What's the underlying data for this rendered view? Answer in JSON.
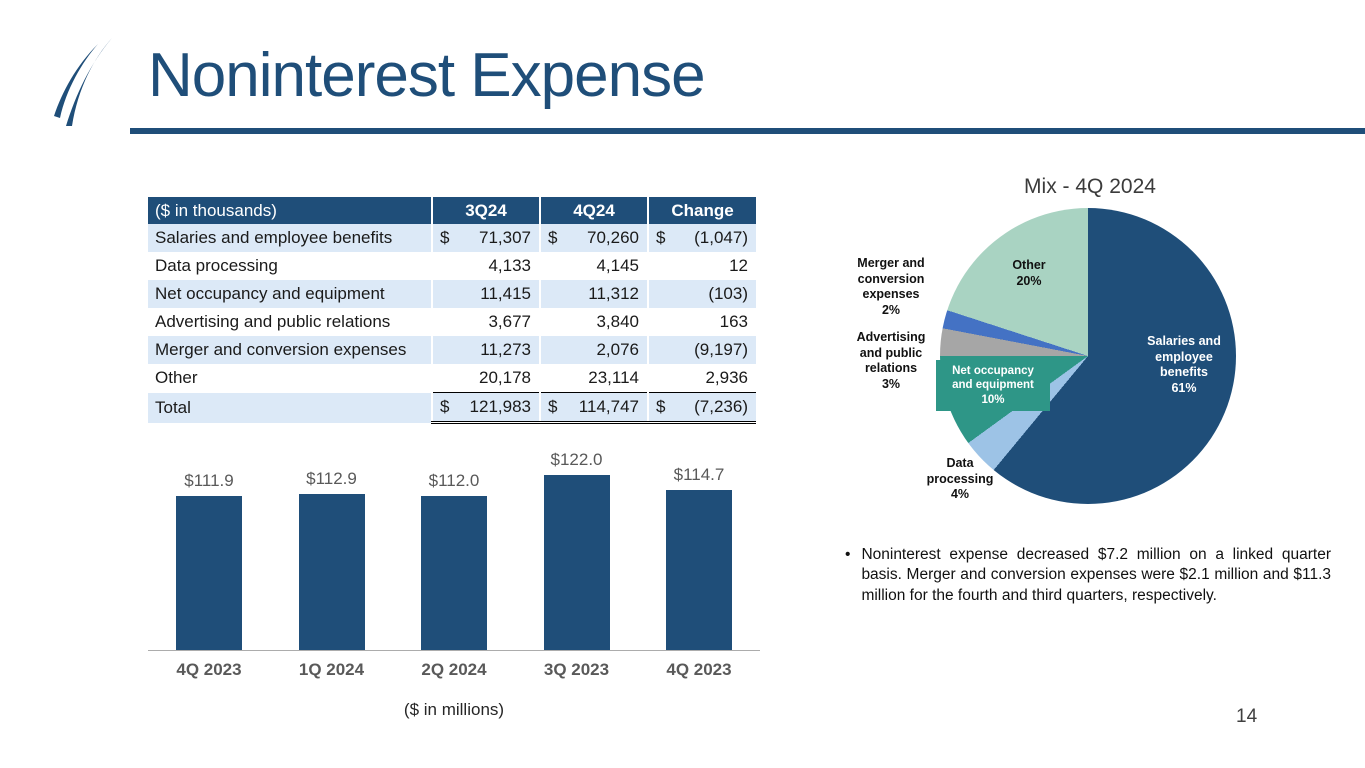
{
  "slide": {
    "title": "Noninterest Expense",
    "page_number": "14",
    "bullet": "Noninterest expense decreased $7.2 million on a linked quarter basis. Merger and conversion expenses were $2.1 million and $11.3 million for the fourth and third quarters, respectively.",
    "bullet_marker": "•"
  },
  "colors": {
    "navy": "#1F4E79",
    "table_row_alt": "#DCE9F7",
    "mint": "#A9D3C2",
    "teal": "#2E9687",
    "light_blue": "#9DC3E6",
    "gray": "#A6A6A6",
    "blue": "#4472C4",
    "axis_label_gray": "#595959"
  },
  "table": {
    "unit_label": "($ in thousands)",
    "columns": [
      "3Q24",
      "4Q24",
      "Change"
    ],
    "rows": [
      {
        "label": "Salaries and employee benefits",
        "d1": "$",
        "v1": "71,307",
        "d2": "$",
        "v2": "70,260",
        "d3": "$",
        "v3": "(1,047)"
      },
      {
        "label": "Data processing",
        "v1": "4,133",
        "v2": "4,145",
        "v3": "12"
      },
      {
        "label": "Net occupancy and equipment",
        "v1": "11,415",
        "v2": "11,312",
        "v3": "(103)"
      },
      {
        "label": "Advertising and public relations",
        "v1": "3,677",
        "v2": "3,840",
        "v3": "163"
      },
      {
        "label": "Merger and conversion expenses",
        "v1": "11,273",
        "v2": "2,076",
        "v3": "(9,197)"
      },
      {
        "label": "Other",
        "v1": "20,178",
        "v2": "23,114",
        "v3": "2,936"
      }
    ],
    "total": {
      "label": "Total",
      "d1": "$",
      "v1": "121,983",
      "d2": "$",
      "v2": "114,747",
      "d3": "$",
      "v3": "(7,236)"
    }
  },
  "chart_data": [
    {
      "type": "bar",
      "title": "",
      "categories": [
        "4Q 2023",
        "1Q 2024",
        "2Q 2024",
        "3Q 2023",
        "4Q 2023"
      ],
      "values": [
        111.9,
        112.9,
        112.0,
        122.0,
        114.7
      ],
      "labels": [
        "$111.9",
        "$112.9",
        "$112.0",
        "$122.0",
        "$114.7"
      ],
      "xlabel": "($ in millions)",
      "ylabel": "",
      "ylim": [
        0,
        130
      ],
      "bar_color": "#1F4E79",
      "grid": false,
      "legend": false
    },
    {
      "type": "pie",
      "title": "Mix - 4Q 2024",
      "slices": [
        {
          "name": "Salaries and employee benefits",
          "pct": 61,
          "color": "#1F4E79",
          "label": "Salaries and\nemployee\nbenefits\n61%"
        },
        {
          "name": "Data processing",
          "pct": 4,
          "color": "#9DC3E6",
          "label": "Data\nprocessing\n4%"
        },
        {
          "name": "Net occupancy and equipment",
          "pct": 10,
          "color": "#2E9687",
          "label": "Net occupancy\nand equipment\n10%"
        },
        {
          "name": "Advertising and public relations",
          "pct": 3,
          "color": "#A6A6A6",
          "label": "Advertising\nand public\nrelations\n3%"
        },
        {
          "name": "Merger and conversion expenses",
          "pct": 2,
          "color": "#4472C4",
          "label": "Merger and\nconversion\nexpenses\n2%"
        },
        {
          "name": "Other",
          "pct": 20,
          "color": "#A9D3C2",
          "label": "Other\n20%"
        }
      ],
      "legend": false
    }
  ]
}
